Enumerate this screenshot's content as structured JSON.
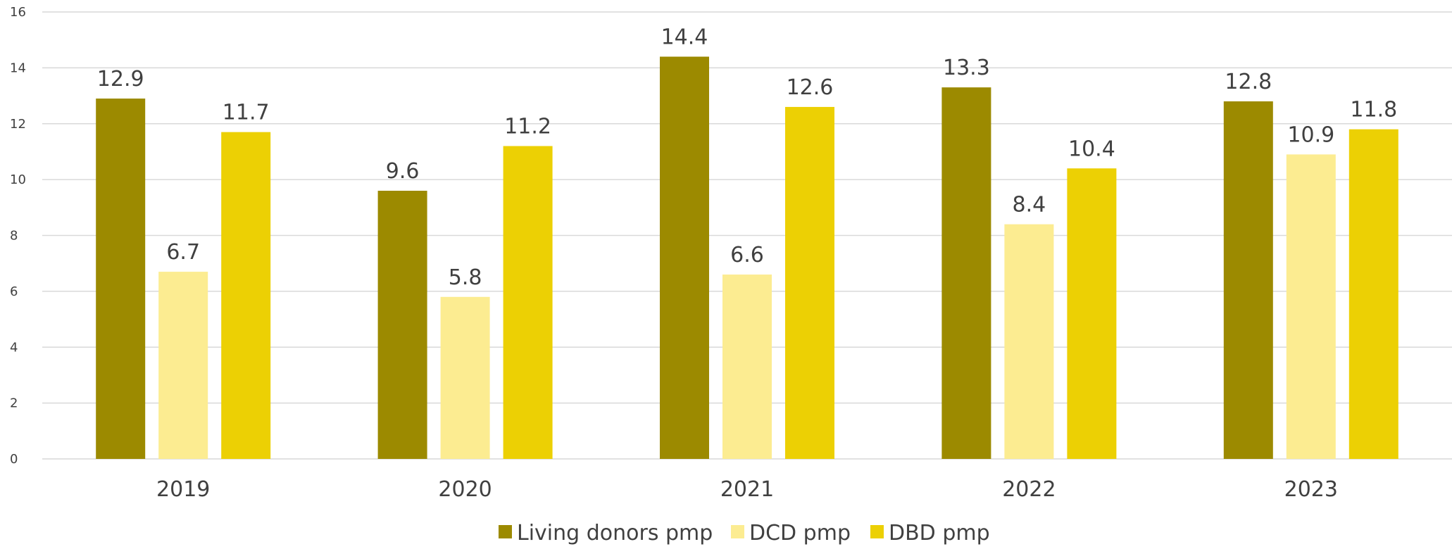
{
  "chart_data": {
    "type": "bar",
    "title": "",
    "xlabel": "",
    "ylabel": "",
    "categories": [
      "2019",
      "2020",
      "2021",
      "2022",
      "2023"
    ],
    "series": [
      {
        "name": "Living donors pmp",
        "values": [
          12.9,
          9.6,
          14.4,
          13.3,
          12.8
        ],
        "color": "#9c8a00"
      },
      {
        "name": "DCD pmp",
        "values": [
          6.7,
          5.8,
          6.6,
          8.4,
          10.9
        ],
        "color": "#fcec91"
      },
      {
        "name": "DBD pmp",
        "values": [
          11.7,
          11.2,
          12.6,
          10.4,
          11.8
        ],
        "color": "#ecd004"
      }
    ],
    "ylim": [
      0,
      16
    ],
    "yticks": [
      0,
      2,
      4,
      6,
      8,
      10,
      12,
      14,
      16
    ],
    "grid": true,
    "data_labels": true,
    "legend_position": "bottom"
  }
}
